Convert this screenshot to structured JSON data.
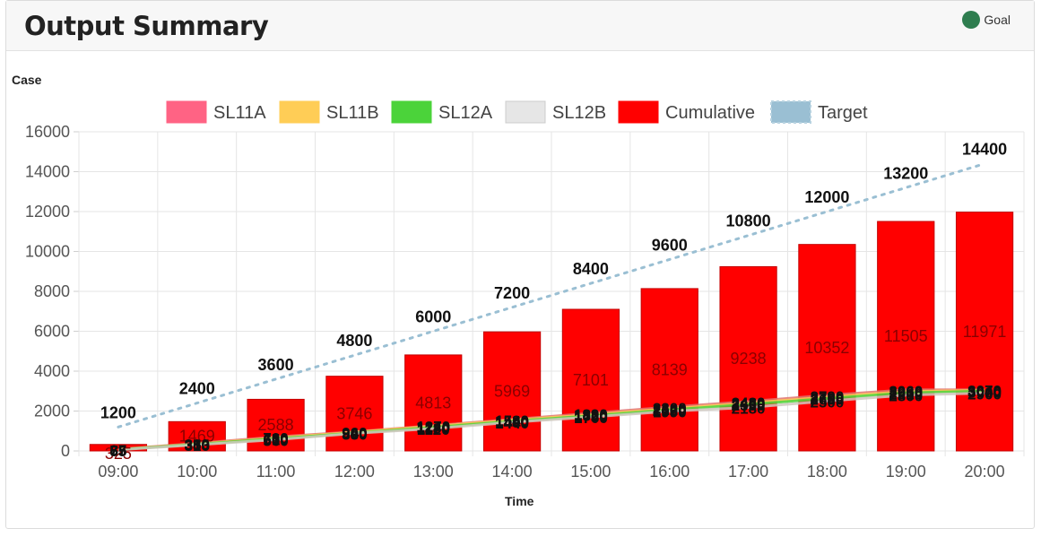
{
  "header": {
    "title": "Output Summary",
    "goal_label": "Goal",
    "goal_color": "#2e7d4f"
  },
  "chart_data": {
    "type": "bar",
    "ylabel": "Case",
    "xlabel": "Time",
    "ylim": [
      0,
      16000
    ],
    "y_ticks": [
      0,
      2000,
      4000,
      6000,
      8000,
      10000,
      12000,
      14000,
      16000
    ],
    "categories": [
      "09:00",
      "10:00",
      "11:00",
      "12:00",
      "13:00",
      "14:00",
      "15:00",
      "16:00",
      "17:00",
      "18:00",
      "19:00",
      "20:00"
    ],
    "grid": true,
    "legend_position": "top",
    "series": [
      {
        "name": "SL11A",
        "kind": "line",
        "color": "#ff6384",
        "values": [
          87,
          380,
          700,
          960,
          1270,
          1580,
          1890,
          2200,
          2480,
          2790,
          3060,
          3070
        ]
      },
      {
        "name": "SL11B",
        "kind": "line",
        "color": "#ffcd56",
        "values": [
          75,
          350,
          650,
          940,
          1240,
          1540,
          1820,
          2120,
          2400,
          2700,
          2980,
          3040
        ]
      },
      {
        "name": "SL12A",
        "kind": "line",
        "color": "#4bd33a",
        "values": [
          65,
          333,
          610,
          900,
          1180,
          1490,
          1760,
          2060,
          2330,
          2630,
          2910,
          3000
        ]
      },
      {
        "name": "SL12B",
        "kind": "line",
        "color": "#e6e6e6",
        "values": [
          55,
          310,
          560,
          880,
          1120,
          1440,
          1700,
          1990,
          2180,
          2500,
          2800,
          2900
        ]
      },
      {
        "name": "Cumulative",
        "kind": "bar",
        "color": "#ff0000",
        "values": [
          325,
          1469,
          2588,
          3746,
          4813,
          5969,
          7101,
          8139,
          9238,
          10352,
          11505,
          11971
        ]
      },
      {
        "name": "Target",
        "kind": "line",
        "dashed": true,
        "color": "#9abfd3",
        "values": [
          1200,
          2400,
          3600,
          4800,
          6000,
          7200,
          8400,
          9600,
          10800,
          12000,
          13200,
          14400
        ]
      }
    ]
  }
}
